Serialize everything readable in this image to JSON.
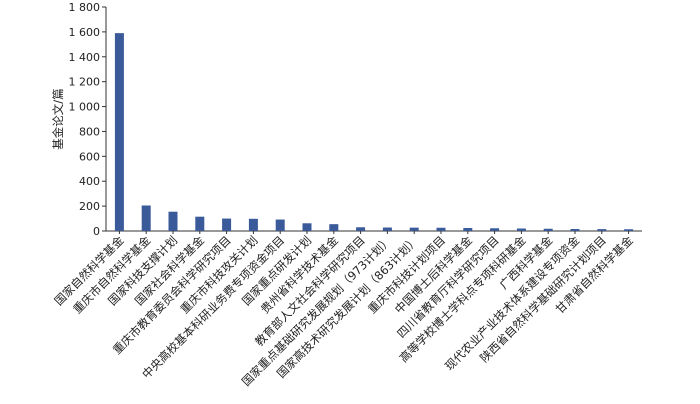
{
  "chart_data": {
    "type": "bar",
    "ylabel": "基金论文/篇",
    "ylim": [
      0,
      1800
    ],
    "yticks": [
      0,
      200,
      400,
      600,
      800,
      1000,
      1200,
      1400,
      1600,
      1800
    ],
    "ytick_labels": [
      "0",
      "200",
      "400",
      "600",
      "800",
      "1 000",
      "1 200",
      "1 400",
      "1 600",
      "1 800"
    ],
    "grid": false,
    "bar_color": "#3a5a99",
    "categories": [
      "国家自然科学基金",
      "重庆市自然科学基金",
      "国家科技支撑计划",
      "国家社会科学基金",
      "重庆市教育委员会科学研究项目",
      "重庆市科技攻关计划",
      "中央高校基本科研业务费专项资金项目",
      "国家重点研发计划",
      "贵州省科学技术基金",
      "教育部人文社会科学研究项目",
      "国家重点基础研究发展规划（973计划）",
      "国家高技术研究发展计划（863计划）",
      "重庆市科技计划项目",
      "中国博士后科学基金",
      "四川省教育厅科学研究项目",
      "高等学校博士学科点专项科研基金",
      "广西科学基金",
      "现代农业产业技术体系建设专项资金",
      "陕西省自然科学基础研究计划项目",
      "甘肃省自然科学基金"
    ],
    "values": [
      1590,
      205,
      155,
      115,
      100,
      98,
      92,
      62,
      55,
      30,
      28,
      27,
      26,
      24,
      22,
      20,
      18,
      16,
      15,
      14
    ]
  }
}
